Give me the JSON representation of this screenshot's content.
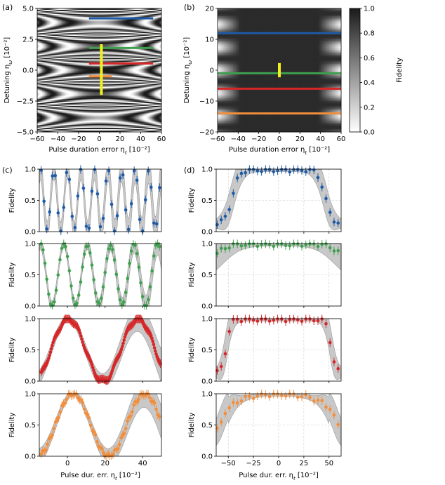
{
  "panel_labels": [
    "(a)",
    "(b)",
    "(c)",
    "(d)"
  ],
  "colors": {
    "blue": "#1f5aa6",
    "green": "#3f9f4f",
    "red": "#d62728",
    "orange": "#f28e3c",
    "yellow": "#f0f020",
    "band": "#c8c8c8",
    "band_edge": "#9a9a9a"
  },
  "chart_data": [
    {
      "id": "a",
      "type": "heatmap",
      "xlabel": "Pulse duration error η_t [10⁻²]",
      "ylabel": "Detuning η_ω [10⁻²]",
      "xlim": [
        -60,
        60
      ],
      "ylim": [
        -5,
        5
      ],
      "xticks": [
        -60,
        -40,
        -20,
        0,
        20,
        40,
        60
      ],
      "yticks": [
        -5.0,
        -2.5,
        0.0,
        2.5,
        5.0
      ],
      "ytick_labels": [
        "-5.0",
        "-2.5",
        "0.0",
        "2.5",
        "5.0"
      ],
      "lines": [
        {
          "color": "blue",
          "x": [
            -10,
            52
          ],
          "y": [
            4.2,
            4.2
          ]
        },
        {
          "color": "green",
          "x": [
            -10,
            52
          ],
          "y": [
            1.8,
            1.8
          ]
        },
        {
          "color": "red",
          "x": [
            -10,
            52
          ],
          "y": [
            0.55,
            0.55
          ]
        },
        {
          "color": "orange",
          "x": [
            -10,
            12
          ],
          "y": [
            -0.5,
            -0.5
          ]
        },
        {
          "color": "yellow",
          "x": [
            2,
            2
          ],
          "y": [
            -2.0,
            2.1
          ]
        }
      ]
    },
    {
      "id": "b",
      "type": "heatmap",
      "xlabel": "Pulse duration error η_t [10⁻²]",
      "ylabel": "Detuning η_ω [10⁻²]",
      "xlim": [
        -60,
        60
      ],
      "ylim": [
        -20,
        20
      ],
      "xticks": [
        -60,
        -40,
        -20,
        0,
        20,
        40,
        60
      ],
      "yticks": [
        -20,
        -10,
        0,
        10,
        20
      ],
      "lines": [
        {
          "color": "blue",
          "x": [
            -60,
            60
          ],
          "y": [
            12,
            12
          ]
        },
        {
          "color": "green",
          "x": [
            -60,
            60
          ],
          "y": [
            -1,
            -1
          ]
        },
        {
          "color": "red",
          "x": [
            -60,
            60
          ],
          "y": [
            -6,
            -6
          ]
        },
        {
          "color": "orange",
          "x": [
            -60,
            60
          ],
          "y": [
            -14,
            -14
          ]
        },
        {
          "color": "yellow",
          "x": [
            0,
            0
          ],
          "y": [
            -2.3,
            2.3
          ]
        }
      ],
      "colorbar": {
        "label": "Fidelity",
        "range": [
          0,
          1
        ],
        "ticks": [
          0.0,
          0.2,
          0.4,
          0.6,
          0.8,
          1.0
        ],
        "tick_labels": [
          "0.0",
          "0.2",
          "0.4",
          "0.6",
          "0.8",
          "1.0"
        ]
      }
    },
    {
      "id": "c",
      "type": "line",
      "xlabel": "Pulse dur. err. η_t [10⁻²]",
      "ylabel": "Fidelity",
      "xlim": [
        -15,
        50
      ],
      "ylim": [
        0,
        1
      ],
      "xticks": [
        0,
        20,
        40
      ],
      "yticks": [
        0.0,
        0.5,
        1.0
      ],
      "ytick_labels": [
        "0.0",
        "0.5",
        "1.0"
      ],
      "grid": false,
      "subplots": [
        {
          "color": "blue",
          "period": 7.2,
          "peak": 0.0,
          "band_min": 0.14,
          "band_growth": 0.08,
          "points_step": 1.5
        },
        {
          "color": "green",
          "period": 12.5,
          "peak": -2.0,
          "band_min": 0.06,
          "band_growth": 0.1,
          "points_step": 1.0
        },
        {
          "color": "red",
          "period": 37.0,
          "peak": 0.5,
          "band_min": 0.04,
          "band_growth": 0.18,
          "points_step": 0.45
        },
        {
          "color": "orange",
          "period": 38.0,
          "peak": 3.0,
          "band_min": 0.03,
          "band_growth": 0.2,
          "points_step": 0.85
        }
      ]
    },
    {
      "id": "d",
      "type": "line",
      "xlabel": "Pulse dur. err. η_t [10⁻²]",
      "ylabel": "Fidelity",
      "xlim": [
        -62,
        62
      ],
      "ylim": [
        0,
        1
      ],
      "xticks": [
        -50,
        -25,
        0,
        25,
        50
      ],
      "yticks": [
        0.0,
        0.5,
        1.0
      ],
      "ytick_labels": [
        "0.0",
        "0.5",
        "1.0"
      ],
      "grid": true,
      "subplots": [
        {
          "color": "blue",
          "points_step": 4
        },
        {
          "color": "green",
          "points_step": 4
        },
        {
          "color": "red",
          "points_step": 4
        },
        {
          "color": "orange",
          "points_step": 4
        }
      ]
    }
  ]
}
